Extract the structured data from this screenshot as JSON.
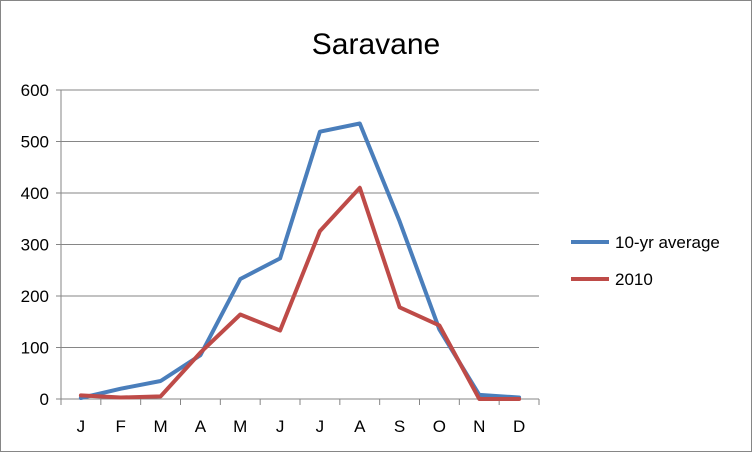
{
  "chart_data": {
    "type": "line",
    "title": "Saravane",
    "xlabel": "",
    "ylabel": "",
    "categories": [
      "J",
      "F",
      "M",
      "A",
      "M",
      "J",
      "J",
      "A",
      "S",
      "O",
      "N",
      "D"
    ],
    "ylim": [
      0,
      600
    ],
    "yticks": [
      0,
      100,
      200,
      300,
      400,
      500,
      600
    ],
    "grid": true,
    "legend_position": "right",
    "series": [
      {
        "name": "10-yr average",
        "color": "#4a7ebb",
        "values": [
          2,
          20,
          35,
          85,
          233,
          273,
          519,
          535,
          345,
          135,
          8,
          3
        ]
      },
      {
        "name": "2010",
        "color": "#be4b48",
        "values": [
          7,
          3,
          5,
          90,
          164,
          133,
          326,
          410,
          178,
          143,
          0,
          0
        ]
      }
    ]
  }
}
